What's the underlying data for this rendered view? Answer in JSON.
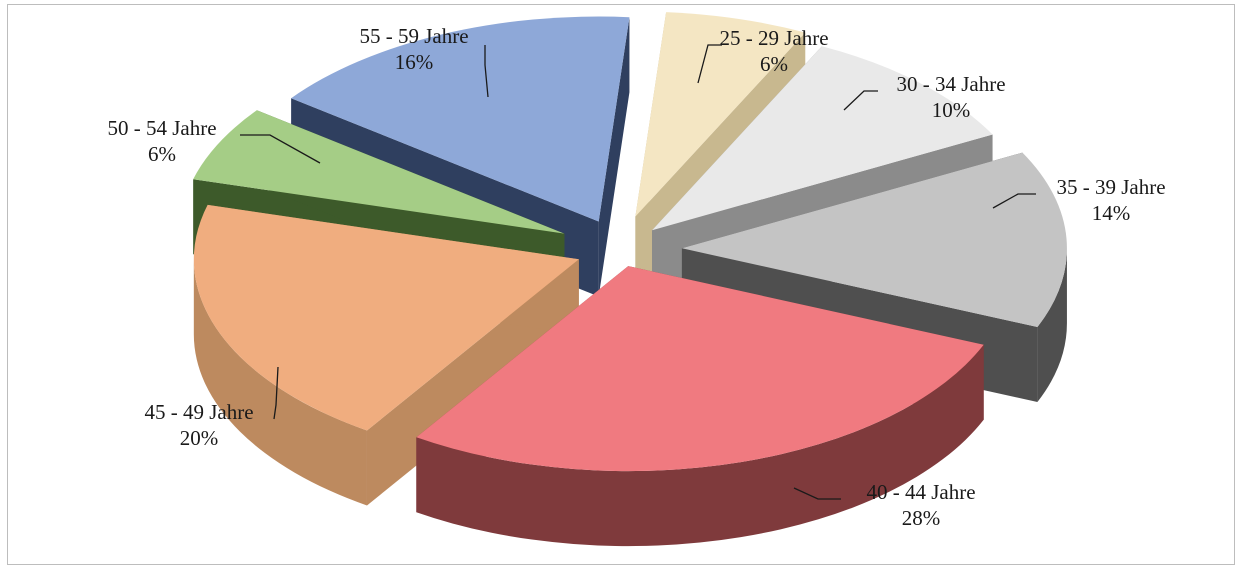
{
  "chart_data": {
    "type": "pie",
    "style": "3d-exploded",
    "title": "",
    "categories": [
      "25 - 29 Jahre",
      "30 - 34 Jahre",
      "35 - 39 Jahre",
      "40 - 44 Jahre",
      "45 - 49 Jahre",
      "50 - 54 Jahre",
      "55 - 59 Jahre"
    ],
    "values": [
      6,
      10,
      14,
      28,
      20,
      6,
      16
    ],
    "value_labels": [
      "6%",
      "10%",
      "14%",
      "28%",
      "20%",
      "6%",
      "16%"
    ],
    "colors": [
      "#f4e6c3",
      "#e9e9e9",
      "#c4c4c4",
      "#f07a80",
      "#f0ad7f",
      "#a5cd86",
      "#8ea8d8"
    ],
    "side_colors": [
      "#c8b88f",
      "#8b8b8b",
      "#4f4f4f",
      "#7f3a3c",
      "#bd8a5f",
      "#3d5a2a",
      "#2f3f5f"
    ],
    "legend": "none"
  }
}
